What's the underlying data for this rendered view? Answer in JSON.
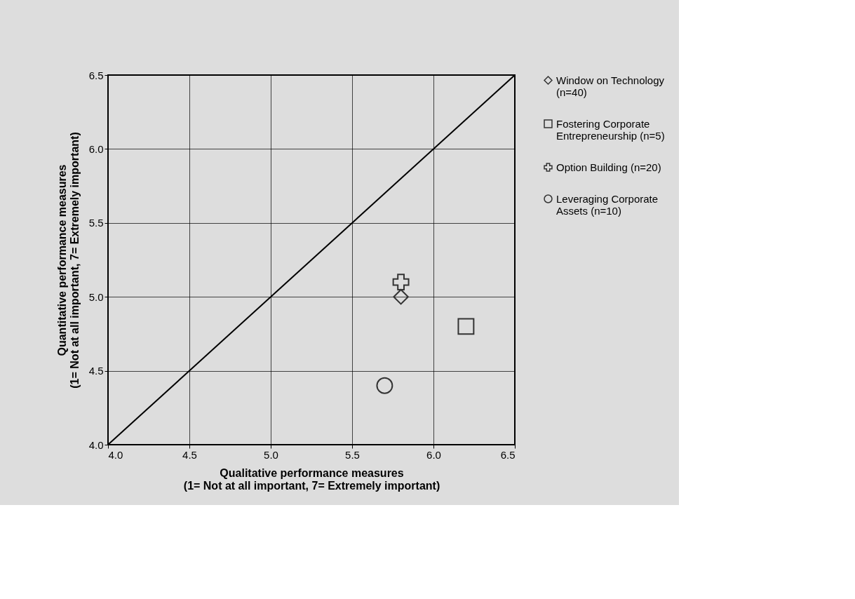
{
  "chart_data": {
    "type": "scatter",
    "xlabel": "Qualitative performance measures\n(1= Not at all important, 7= Extremely important)",
    "ylabel": "Quantitative performance measures\n(1= Not at all important, 7= Extremely important)",
    "xlim": [
      4.0,
      6.5
    ],
    "ylim": [
      4.0,
      6.5
    ],
    "xticks": [
      {
        "value": 4.0,
        "label": "4.0"
      },
      {
        "value": 4.5,
        "label": "4.5"
      },
      {
        "value": 5.0,
        "label": "5.0"
      },
      {
        "value": 5.5,
        "label": "5.5"
      },
      {
        "value": 6.0,
        "label": "6.0"
      },
      {
        "value": 6.5,
        "label": "6.5"
      }
    ],
    "yticks": [
      {
        "value": 4.0,
        "label": "4.0"
      },
      {
        "value": 4.5,
        "label": "4.5"
      },
      {
        "value": 5.0,
        "label": "5.0"
      },
      {
        "value": 5.5,
        "label": "5.5"
      },
      {
        "value": 6.0,
        "label": "6.0"
      },
      {
        "value": 6.5,
        "label": "6.5"
      }
    ],
    "grid": true,
    "legend": "right",
    "series": [
      {
        "type": "line",
        "color": "#000000",
        "x": [
          4.0,
          6.5
        ],
        "values": [
          4.0,
          6.5
        ],
        "marker": "none",
        "line_style": "solid"
      },
      {
        "name": "Window on Technology (n=40)",
        "marker": "diamond",
        "color": "#333333",
        "x": [
          5.8
        ],
        "values": [
          5.0
        ]
      },
      {
        "name": "Fostering Corporate Entrepreneurship (n=5)",
        "marker": "square",
        "color": "#333333",
        "x": [
          6.2
        ],
        "values": [
          4.8
        ]
      },
      {
        "name": "Option Building (n=20)",
        "marker": "cross",
        "color": "#333333",
        "x": [
          5.8
        ],
        "values": [
          5.1
        ]
      },
      {
        "name": "Leveraging Corporate Assets (n=10)",
        "marker": "circle",
        "color": "#333333",
        "x": [
          5.7
        ],
        "values": [
          4.4
        ]
      }
    ]
  }
}
